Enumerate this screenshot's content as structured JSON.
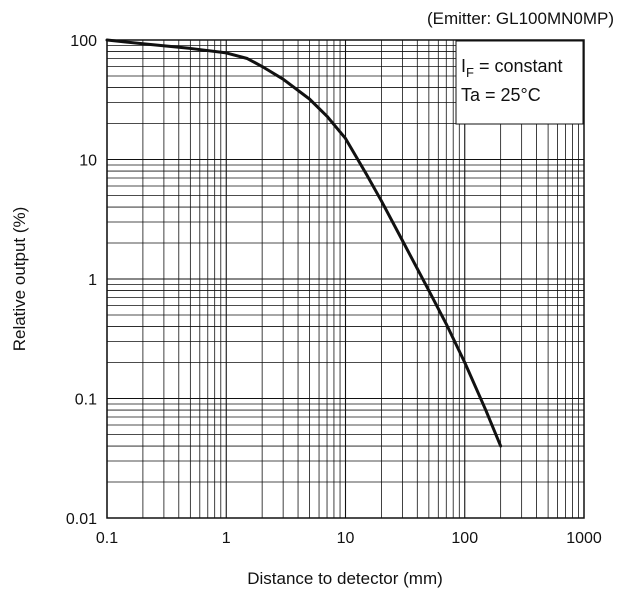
{
  "chart_data": {
    "type": "line",
    "title": "",
    "note": "(Emitter: GL100MN0MP)",
    "xlabel": "Distance to detector (mm)",
    "ylabel": "Relative output (%)",
    "xscale": "log",
    "yscale": "log",
    "xlim": [
      0.1,
      1000
    ],
    "ylim": [
      0.01,
      100
    ],
    "grid": true,
    "x_ticks": [
      "0.1",
      "1",
      "10",
      "100",
      "1000"
    ],
    "y_ticks": [
      "0.01",
      "0.1",
      "1",
      "10",
      "100"
    ],
    "conditions": {
      "if_symbol": "I",
      "if_subscript": "F",
      "if_text": " = constant",
      "ta_text": "Ta = 25°C"
    },
    "series": [
      {
        "x": [
          0.1,
          0.2,
          0.5,
          1,
          1.5,
          2,
          3,
          5,
          7,
          10,
          15,
          20,
          30,
          50,
          70,
          100,
          150,
          200
        ],
        "y": [
          100,
          93,
          85,
          78,
          70,
          60,
          47,
          32,
          23,
          15,
          7.5,
          4.5,
          2.1,
          0.8,
          0.42,
          0.2,
          0.08,
          0.04
        ]
      }
    ]
  }
}
